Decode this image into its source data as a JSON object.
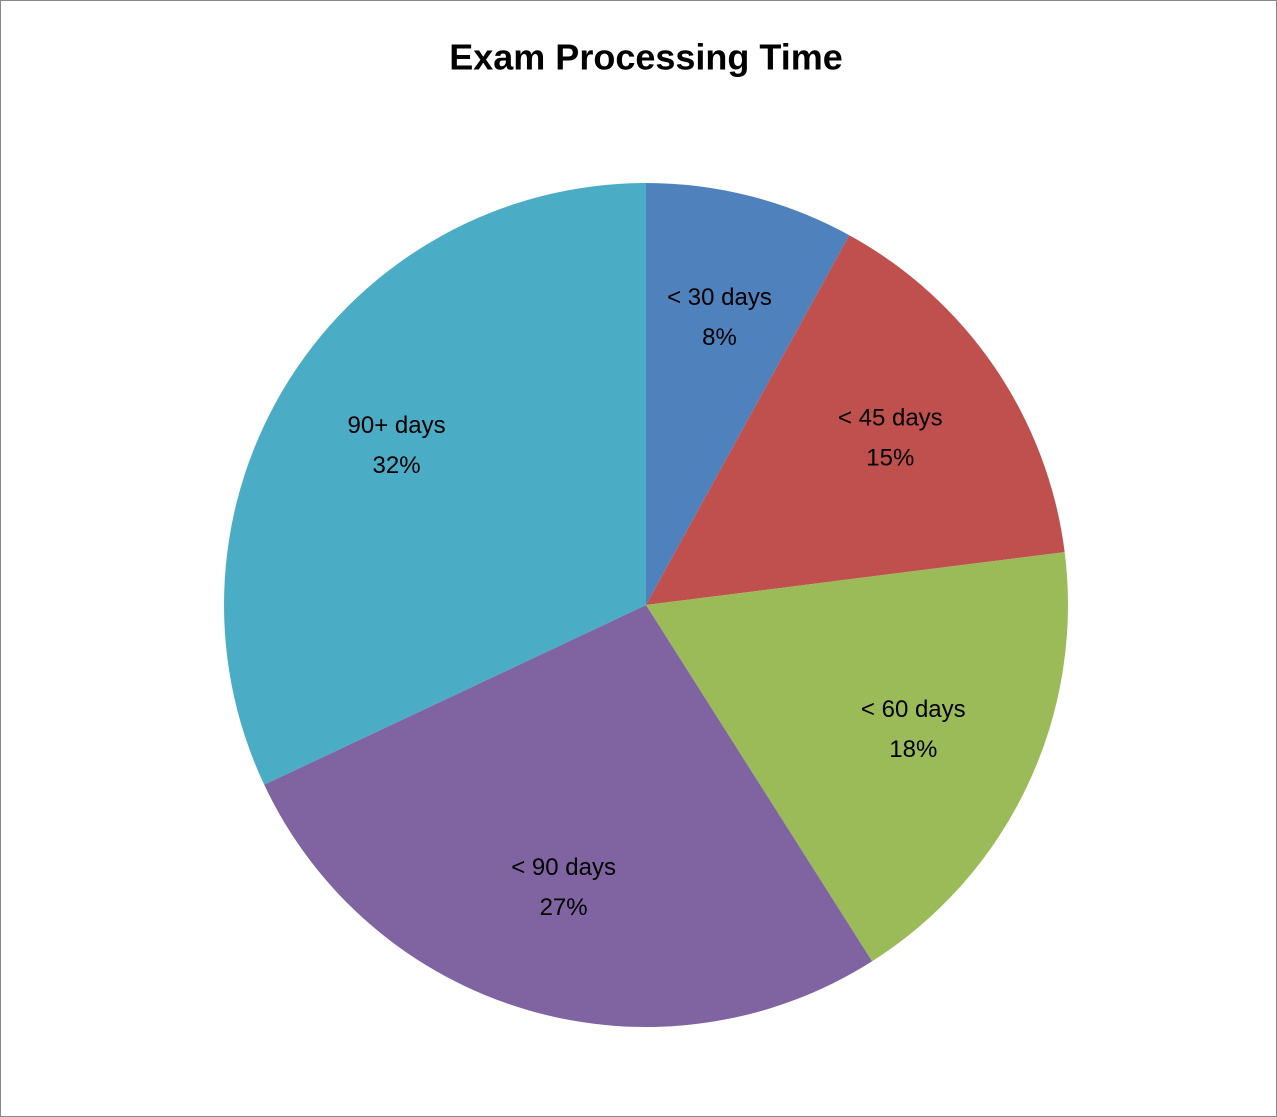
{
  "chart_data": {
    "type": "pie",
    "title": "Exam Processing Time",
    "categories": [
      "< 30 days",
      "< 45 days",
      "< 60 days",
      "< 90 days",
      "90+ days"
    ],
    "values": [
      8,
      15,
      18,
      27,
      32
    ],
    "value_labels": [
      "8%",
      "15%",
      "18%",
      "27%",
      "32%"
    ],
    "colors": [
      "#4f81bd",
      "#c0504d",
      "#9bbb59",
      "#8064a2",
      "#4bacc6"
    ]
  }
}
